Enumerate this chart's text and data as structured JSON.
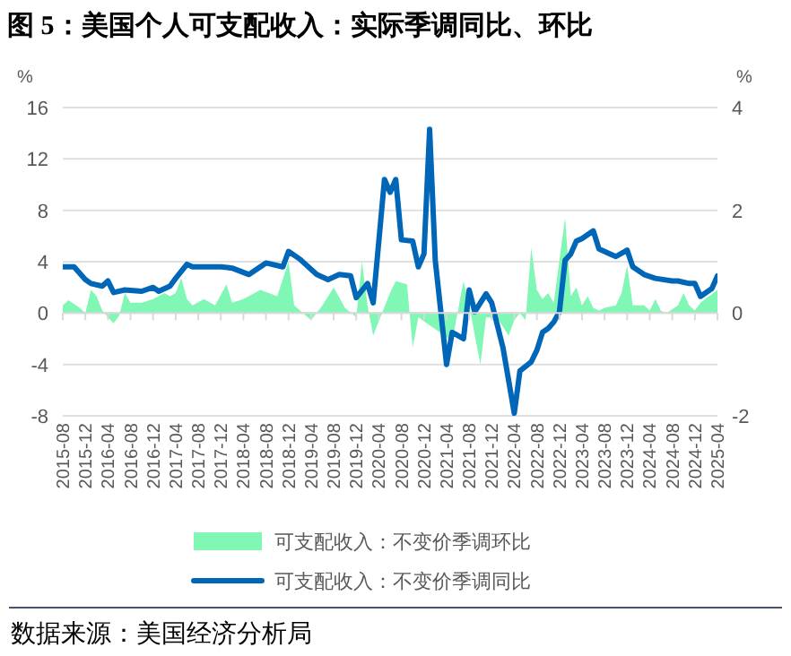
{
  "chart_data": {
    "type": "area",
    "title": "图 5：美国个人可支配收入：实际季调同比、环比",
    "ylabel": "%",
    "y2label": "%",
    "xlim": [
      "2015-08",
      "2025-04"
    ],
    "xticks": [
      "2015-08",
      "2015-12",
      "2016-04",
      "2016-08",
      "2016-12",
      "2017-04",
      "2017-08",
      "2017-12",
      "2018-04",
      "2018-08",
      "2018-12",
      "2019-04",
      "2019-08",
      "2019-12",
      "2020-04",
      "2020-08",
      "2020-12",
      "2021-04",
      "2021-08",
      "2021-12",
      "2022-04",
      "2022-08",
      "2022-12",
      "2023-04",
      "2023-08",
      "2023-12",
      "2024-04",
      "2024-08",
      "2024-12",
      "2025-04"
    ],
    "ylim": [
      -8,
      16
    ],
    "yticks": [
      -8,
      -4,
      0,
      4,
      8,
      12,
      16
    ],
    "y2lim": [
      -2,
      4
    ],
    "y2ticks": [
      -2,
      0,
      2,
      4
    ],
    "grid": "y",
    "legend": "bottom",
    "series": [
      {
        "name": "可支配收入：不变价季调环比",
        "axis": "y2",
        "color": "#80f7b4",
        "x": [
          "2015-08",
          "2015-09",
          "2015-11",
          "2015-12",
          "2016-01",
          "2016-02",
          "2016-03",
          "2016-04",
          "2016-05",
          "2016-06",
          "2016-07",
          "2016-08",
          "2016-10",
          "2016-12",
          "2017-02",
          "2017-03",
          "2017-04",
          "2017-05",
          "2017-06",
          "2017-07",
          "2017-09",
          "2017-11",
          "2018-01",
          "2018-02",
          "2018-04",
          "2018-07",
          "2018-10",
          "2018-12",
          "2019-01",
          "2019-04",
          "2019-06",
          "2019-08",
          "2019-10",
          "2019-12",
          "2020-01",
          "2020-02",
          "2020-03",
          "2020-06",
          "2020-07",
          "2020-09",
          "2020-10",
          "2020-11",
          "2021-05",
          "2021-07",
          "2021-08",
          "2021-10",
          "2021-11",
          "2022-01",
          "2022-03",
          "2022-04",
          "2022-05",
          "2022-06",
          "2022-07",
          "2022-08",
          "2022-09",
          "2022-10",
          "2022-11",
          "2023-01",
          "2023-02",
          "2023-03",
          "2023-04",
          "2023-05",
          "2023-06",
          "2023-07",
          "2023-08",
          "2023-10",
          "2023-11",
          "2023-12",
          "2024-01",
          "2024-03",
          "2024-04",
          "2024-05",
          "2024-06",
          "2024-07",
          "2024-09",
          "2024-10",
          "2024-11",
          "2024-12",
          "2025-01",
          "2025-04"
        ],
        "values": [
          0.15,
          0.25,
          0.1,
          0,
          0.45,
          0.33,
          0.05,
          -0.08,
          -0.2,
          -0.05,
          0.39,
          0.2,
          0.2,
          0.27,
          0.39,
          0.33,
          0.39,
          0.68,
          0.27,
          0.15,
          0.27,
          0.15,
          0.56,
          0.2,
          0.27,
          0.45,
          0.33,
          1.0,
          0.15,
          -0.14,
          0.15,
          0.5,
          0.1,
          -0.08,
          1.0,
          0.15,
          -0.44,
          0.4,
          0.62,
          0.56,
          -0.67,
          -0.08,
          -0.55,
          0.62,
          0.15,
          -1.0,
          -0.08,
          -0.1,
          -0.44,
          -0.14,
          0.0,
          -0.14,
          1.27,
          0.45,
          0.27,
          0.39,
          0.2,
          1.86,
          0.33,
          0.5,
          0.15,
          0.33,
          0.1,
          0.05,
          0.1,
          0.15,
          0.39,
          0.92,
          0.15,
          0.15,
          0.05,
          0.27,
          0.04,
          0.0,
          0.15,
          0.39,
          0.15,
          0.05,
          0.2,
          0.45
        ]
      },
      {
        "name": "可支配收入：不变价季调同比",
        "type": "line",
        "color": "#0066b8",
        "x": [
          "2015-08",
          "2015-10",
          "2015-12",
          "2016-01",
          "2016-03",
          "2016-04",
          "2016-05",
          "2016-07",
          "2016-10",
          "2016-12",
          "2017-01",
          "2017-03",
          "2017-04",
          "2017-06",
          "2017-07",
          "2017-11",
          "2017-12",
          "2018-02",
          "2018-05",
          "2018-08",
          "2018-11",
          "2018-12",
          "2019-02",
          "2019-05",
          "2019-07",
          "2019-09",
          "2019-11",
          "2019-12",
          "2020-02",
          "2020-03",
          "2020-05",
          "2020-06",
          "2020-07",
          "2020-08",
          "2020-10",
          "2020-11",
          "2020-12",
          "2021-01",
          "2021-02",
          "2021-04",
          "2021-05",
          "2021-07",
          "2021-08",
          "2021-09",
          "2021-11",
          "2021-12",
          "2022-02",
          "2022-04",
          "2022-05",
          "2022-07",
          "2022-08",
          "2022-09",
          "2022-10",
          "2022-11",
          "2022-12",
          "2023-01",
          "2023-02",
          "2023-03",
          "2023-04",
          "2023-06",
          "2023-07",
          "2023-09",
          "2023-10",
          "2023-12",
          "2024-01",
          "2024-03",
          "2024-05",
          "2024-08",
          "2024-09",
          "2024-11",
          "2024-12",
          "2025-01",
          "2025-03",
          "2025-04"
        ],
        "values": [
          3.6,
          3.6,
          2.6,
          2.3,
          2.1,
          2.5,
          1.6,
          1.8,
          1.7,
          2.0,
          1.7,
          2.1,
          2.7,
          3.8,
          3.6,
          3.6,
          3.6,
          3.5,
          3.0,
          3.9,
          3.6,
          4.8,
          4.2,
          3.0,
          2.6,
          3.0,
          2.9,
          1.2,
          2.3,
          0.8,
          10.4,
          9.4,
          10.4,
          5.7,
          5.6,
          3.6,
          4.6,
          14.3,
          4.1,
          -4.0,
          -1.5,
          -2.0,
          1.8,
          0.1,
          1.5,
          0.8,
          -2.7,
          -7.8,
          -4.5,
          -3.8,
          -2.9,
          -1.5,
          -1.2,
          -0.7,
          0.1,
          4.1,
          4.6,
          5.6,
          5.8,
          6.4,
          5.0,
          4.6,
          4.4,
          4.9,
          3.6,
          3.0,
          2.7,
          2.5,
          2.5,
          2.3,
          2.3,
          1.3,
          1.9,
          2.9
        ]
      }
    ],
    "annotations": [
      "数据来源：美国经济分析局"
    ]
  }
}
